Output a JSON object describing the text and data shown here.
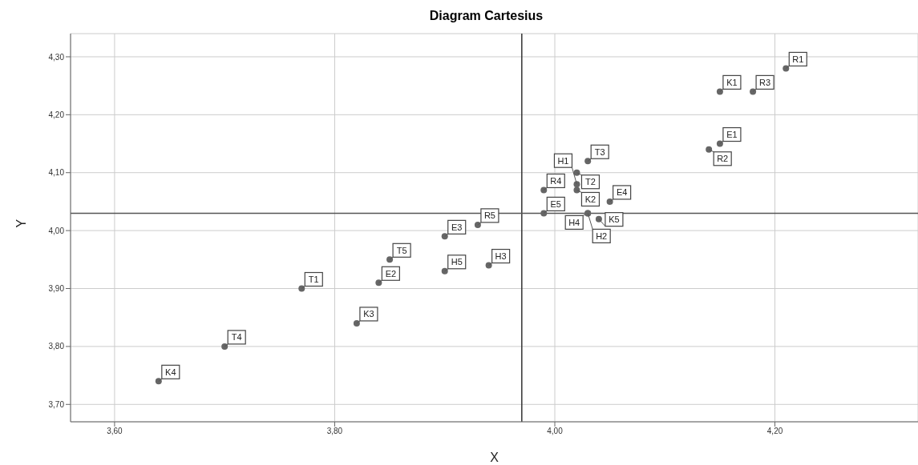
{
  "chart_data": {
    "type": "scatter",
    "title": "Diagram Cartesius",
    "xlabel": "X",
    "ylabel": "Y",
    "x": [
      3.64,
      3.7,
      3.77,
      3.82,
      3.84,
      3.85,
      3.9,
      3.9,
      3.94,
      3.93,
      3.99,
      3.99,
      4.02,
      4.03,
      4.02,
      4.02,
      4.05,
      4.03,
      4.03,
      4.04,
      4.15,
      4.18,
      4.21,
      4.15,
      4.14
    ],
    "series": [
      {
        "color": "#666666",
        "values": [
          3.74,
          3.8,
          3.9,
          3.84,
          3.91,
          3.95,
          3.93,
          3.99,
          3.94,
          4.01,
          4.03,
          4.07,
          4.1,
          4.12,
          4.07,
          4.08,
          4.05,
          4.03,
          4.03,
          4.02,
          4.24,
          4.24,
          4.28,
          4.15,
          4.14
        ],
        "value_labels": [
          "K4",
          "T4",
          "T1",
          "K3",
          "E2",
          "T5",
          "H5",
          "E3",
          "H3",
          "R5",
          "E5",
          "R4",
          "T2",
          "T3",
          "K2",
          "H1",
          "E4",
          "H4",
          "H2",
          "K5",
          "K1",
          "R3",
          "R1",
          "E1",
          "R2"
        ]
      }
    ],
    "xlim": [
      3.56,
      4.33
    ],
    "ylim": [
      3.67,
      4.34
    ],
    "xticks": [
      {
        "value": 3.6,
        "label": "3,60"
      },
      {
        "value": 3.8,
        "label": "3,80"
      },
      {
        "value": 4.0,
        "label": "4,00"
      },
      {
        "value": 4.2,
        "label": "4,20"
      }
    ],
    "yticks": [
      {
        "value": 3.7,
        "label": "3,70"
      },
      {
        "value": 3.8,
        "label": "3,80"
      },
      {
        "value": 3.9,
        "label": "3,90"
      },
      {
        "value": 4.0,
        "label": "4,00"
      },
      {
        "value": 4.1,
        "label": "4,10"
      },
      {
        "value": 4.2,
        "label": "4,20"
      },
      {
        "value": 4.3,
        "label": "4,30"
      }
    ],
    "ref_lines": [
      {
        "axis": "x",
        "value": 3.97,
        "color": "#333333"
      },
      {
        "axis": "y",
        "value": 4.03,
        "color": "#555555"
      }
    ],
    "grid": true,
    "marker": "circle"
  }
}
